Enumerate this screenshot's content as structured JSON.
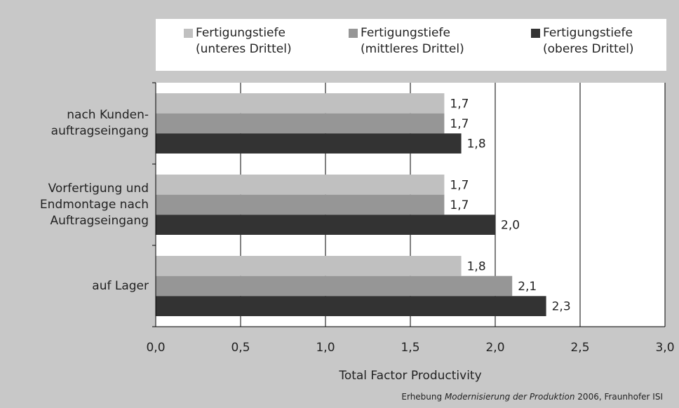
{
  "chart_data": {
    "type": "bar",
    "orientation": "horizontal",
    "categories": [
      "nach Kunden-\nauftragseingang",
      "Vorfertigung und\nEndmontage nach\nAuftragseingang",
      "auf Lager"
    ],
    "series": [
      {
        "name": "Fertigungstiefe\n(unteres Drittel)",
        "color": "#c0c0c0",
        "values": [
          1.7,
          1.7,
          1.8
        ],
        "value_labels": [
          "1,7",
          "1,7",
          "1,8"
        ]
      },
      {
        "name": "Fertigungstiefe\n(mittleres Drittel)",
        "color": "#969696",
        "values": [
          1.7,
          1.7,
          2.1
        ],
        "value_labels": [
          "1,7",
          "1,7",
          "2,1"
        ]
      },
      {
        "name": "Fertigungstiefe\n(oberes Drittel)",
        "color": "#333333",
        "values": [
          1.8,
          2.0,
          2.3
        ],
        "value_labels": [
          "1,8",
          "2,0",
          "2,3"
        ]
      }
    ],
    "xlim": [
      0,
      3
    ],
    "xticks": [
      {
        "value": 0,
        "label": "0,0"
      },
      {
        "value": 0.5,
        "label": "0,5"
      },
      {
        "value": 1,
        "label": "1,0"
      },
      {
        "value": 1.5,
        "label": "1,5"
      },
      {
        "value": 2,
        "label": "2,0"
      },
      {
        "value": 2.5,
        "label": "2,5"
      },
      {
        "value": 3,
        "label": "3,0"
      }
    ],
    "x_label": "Total Factor Productivity",
    "grid": true,
    "source": [
      "Erhebung ",
      "Modernisierung der Produktion",
      " 2006, Fraunhofer ISI"
    ]
  }
}
